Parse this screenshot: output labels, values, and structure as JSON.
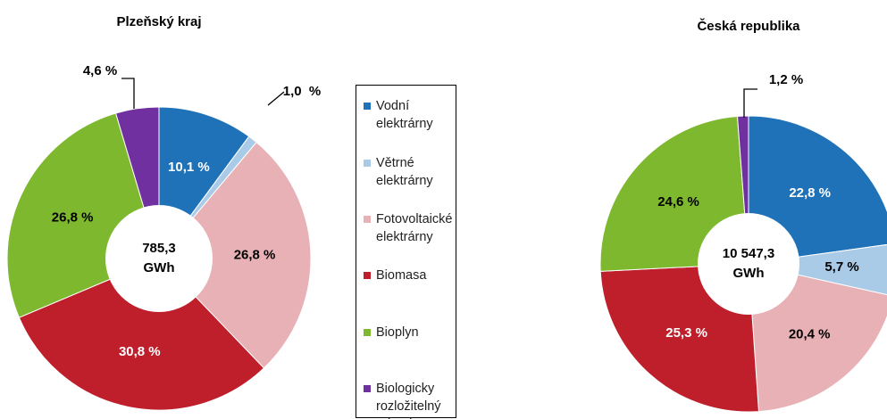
{
  "chart_data": [
    {
      "type": "pie",
      "title": "Plzeňský kraj",
      "categories": [
        "Vodní elektrárny",
        "Větrné elektrárny",
        "Fotovoltaické elektrárny",
        "Biomasa",
        "Bioplyn",
        "Biologicky rozložitelný odpad"
      ],
      "colors": [
        "#1f72b8",
        "#a9cbe8",
        "#e8b1b5",
        "#bf1e2b",
        "#7db82f",
        "#7030a0"
      ],
      "values": [
        10.1,
        1.0,
        26.8,
        30.8,
        26.8,
        4.6
      ],
      "value_labels": [
        "10,1 %",
        "1,0  %",
        "26,8 %",
        "30,8 %",
        "26,8 %",
        "4,6 %"
      ],
      "total": 785.3,
      "total_label": "785,3",
      "unit": "GWh"
    },
    {
      "type": "pie",
      "title": "Česká republika",
      "values": [
        22.8,
        5.7,
        20.4,
        25.3,
        24.6,
        1.2
      ],
      "value_labels": [
        "22,8 %",
        "5,7 %",
        "20,4 %",
        "25,3 %",
        "24,6 %",
        "1,2 %"
      ],
      "total": 10547.3,
      "total_label": "10 547,3",
      "unit": "GWh"
    }
  ]
}
